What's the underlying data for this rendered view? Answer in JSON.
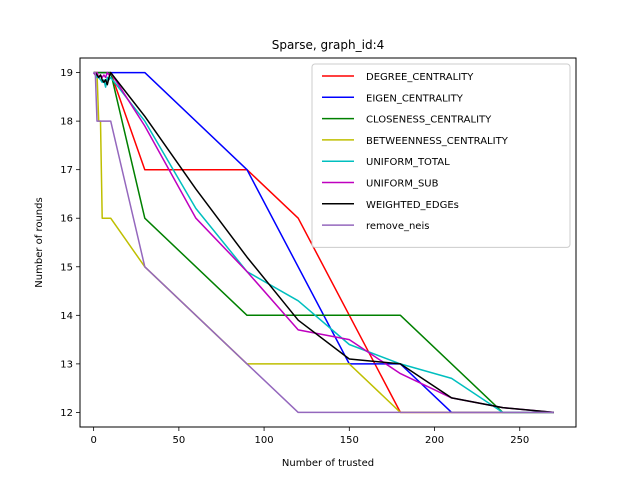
{
  "chart_data": {
    "type": "line",
    "title": "Sparse, graph_id:4",
    "xlabel": "Number of trusted",
    "ylabel": "Number of rounds",
    "xlim": [
      -8,
      283
    ],
    "ylim": [
      11.7,
      19.3
    ],
    "xticks": [
      0,
      50,
      100,
      150,
      200,
      250
    ],
    "yticks": [
      12,
      13,
      14,
      15,
      16,
      17,
      18,
      19
    ],
    "grid": false,
    "legend_position": "top-right",
    "series": [
      {
        "name": "DEGREE_CENTRALITY",
        "color": "#ff0000",
        "x": [
          0,
          1,
          2,
          3,
          4,
          5,
          6,
          7,
          8,
          9,
          10,
          30,
          90,
          120,
          180,
          210,
          240,
          270
        ],
        "y": [
          19,
          19,
          19,
          19,
          19,
          19,
          19,
          19,
          19,
          19,
          19,
          17,
          17,
          16,
          12,
          12,
          12,
          12
        ]
      },
      {
        "name": "EIGEN_CENTRALITY",
        "color": "#0000ff",
        "x": [
          0,
          1,
          2,
          3,
          4,
          5,
          6,
          7,
          8,
          9,
          10,
          30,
          90,
          150,
          180,
          210,
          240,
          270
        ],
        "y": [
          19,
          19,
          19,
          19,
          19,
          19,
          19,
          19,
          19,
          19,
          19,
          19,
          17,
          13,
          13,
          12,
          12,
          12
        ]
      },
      {
        "name": "CLOSENESS_CENTRALITY",
        "color": "#008000",
        "x": [
          0,
          1,
          2,
          3,
          4,
          5,
          6,
          7,
          8,
          9,
          10,
          30,
          90,
          180,
          240,
          270
        ],
        "y": [
          19,
          19,
          19,
          19,
          19,
          19,
          19,
          19,
          19,
          19,
          19,
          16,
          14,
          14,
          12,
          12
        ]
      },
      {
        "name": "BETWEENNESS_CENTRALITY",
        "color": "#bfbf00",
        "x": [
          0,
          1,
          2,
          3,
          4,
          5,
          6,
          7,
          8,
          9,
          10,
          30,
          90,
          150,
          180,
          210,
          240,
          270
        ],
        "y": [
          19,
          19,
          19,
          18,
          18,
          16,
          16,
          16,
          16,
          16,
          16,
          15,
          13,
          13,
          12,
          12,
          12,
          12
        ]
      },
      {
        "name": "UNIFORM_TOTAL",
        "color": "#00bfbf",
        "x": [
          0,
          1,
          2,
          3,
          4,
          5,
          6,
          7,
          8,
          9,
          10,
          30,
          60,
          90,
          120,
          150,
          180,
          210,
          240,
          270
        ],
        "y": [
          19,
          18.95,
          18.9,
          18.9,
          18.85,
          18.8,
          18.85,
          18.7,
          18.9,
          18.85,
          18.9,
          18,
          16.2,
          14.9,
          14.3,
          13.4,
          13,
          12.7,
          12,
          12
        ]
      },
      {
        "name": "UNIFORM_SUB",
        "color": "#bf00bf",
        "x": [
          0,
          1,
          2,
          3,
          4,
          5,
          6,
          7,
          8,
          9,
          10,
          30,
          60,
          90,
          120,
          150,
          180,
          210,
          240,
          270
        ],
        "y": [
          19,
          18.95,
          19,
          18.9,
          18.95,
          18.9,
          18.95,
          18.9,
          19,
          18.95,
          19,
          17.9,
          16,
          14.9,
          13.7,
          13.5,
          12.8,
          12.3,
          12.1,
          12
        ]
      },
      {
        "name": "WEIGHTED_EDGEs",
        "color": "#000000",
        "x": [
          0,
          1,
          2,
          3,
          4,
          5,
          6,
          7,
          8,
          9,
          10,
          30,
          60,
          90,
          120,
          150,
          180,
          210,
          240,
          270
        ],
        "y": [
          19,
          19,
          18.95,
          18.9,
          18.95,
          18.85,
          18.8,
          18.85,
          18.75,
          18.9,
          19,
          18.1,
          16.6,
          15.2,
          13.9,
          13.1,
          13,
          12.3,
          12.1,
          12
        ]
      },
      {
        "name": "remove_neis",
        "color": "#9467bd",
        "x": [
          0,
          1,
          2,
          3,
          4,
          5,
          6,
          7,
          8,
          9,
          10,
          30,
          90,
          120,
          150,
          180,
          210,
          240,
          270
        ],
        "y": [
          19,
          19,
          18,
          18,
          18,
          18,
          18,
          18,
          18,
          18,
          18,
          15,
          13,
          12,
          12,
          12,
          12,
          12,
          12
        ]
      }
    ]
  }
}
